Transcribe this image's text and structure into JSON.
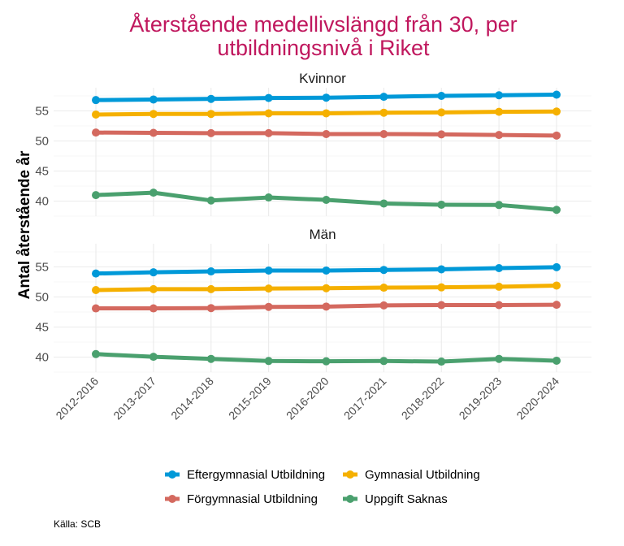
{
  "title_line1": "Återstående medellivslängd från 30, per",
  "title_line2": "utbildningsnivå i Riket",
  "ylabel": "Antal återstående år",
  "source": "Källa: SCB",
  "colors": {
    "title": "#c0185e",
    "Eftergymnasial Utbildning": "#0099d8",
    "Gymnasial Utbildning": "#f5b000",
    "Förgymnasial Utbildning": "#d4695f",
    "Uppgift Saknas": "#4aa06e"
  },
  "chart_data": {
    "type": "line",
    "title": "Återstående medellivslängd från 30, per utbildningsnivå i Riket",
    "ylabel": "Antal återstående år",
    "xlabel": "",
    "categories": [
      "2012-2016",
      "2013-2017",
      "2014-2018",
      "2015-2019",
      "2016-2020",
      "2017-2021",
      "2018-2022",
      "2019-2023",
      "2020-2024"
    ],
    "yticks": [
      40,
      45,
      50,
      55
    ],
    "ylim": [
      37.5,
      58.5
    ],
    "legend": [
      "Eftergymnasial Utbildning",
      "Gymnasial Utbildning",
      "Förgymnasial Utbildning",
      "Uppgift Saknas"
    ],
    "legend_position": "bottom",
    "panels": [
      {
        "title": "Kvinnor",
        "series": [
          {
            "name": "Eftergymnasial Utbildning",
            "values": [
              56.8,
              56.9,
              57.0,
              57.15,
              57.2,
              57.35,
              57.5,
              57.6,
              57.7
            ]
          },
          {
            "name": "Gymnasial Utbildning",
            "values": [
              54.4,
              54.5,
              54.5,
              54.6,
              54.6,
              54.7,
              54.75,
              54.85,
              54.9
            ]
          },
          {
            "name": "Förgymnasial Utbildning",
            "values": [
              51.4,
              51.35,
              51.3,
              51.3,
              51.15,
              51.15,
              51.1,
              51.0,
              50.9
            ]
          },
          {
            "name": "Uppgift Saknas",
            "values": [
              41.0,
              41.4,
              40.1,
              40.6,
              40.2,
              39.6,
              39.4,
              39.35,
              38.55
            ]
          }
        ]
      },
      {
        "title": "Män",
        "series": [
          {
            "name": "Eftergymnasial Utbildning",
            "values": [
              53.9,
              54.1,
              54.25,
              54.4,
              54.4,
              54.5,
              54.6,
              54.8,
              54.95
            ]
          },
          {
            "name": "Gymnasial Utbildning",
            "values": [
              51.15,
              51.3,
              51.3,
              51.4,
              51.45,
              51.55,
              51.6,
              51.7,
              51.9
            ]
          },
          {
            "name": "Förgymnasial Utbildning",
            "values": [
              48.1,
              48.1,
              48.15,
              48.35,
              48.4,
              48.6,
              48.65,
              48.65,
              48.7
            ]
          },
          {
            "name": "Uppgift Saknas",
            "values": [
              40.5,
              40.05,
              39.7,
              39.35,
              39.3,
              39.35,
              39.25,
              39.7,
              39.4
            ]
          }
        ]
      }
    ]
  }
}
